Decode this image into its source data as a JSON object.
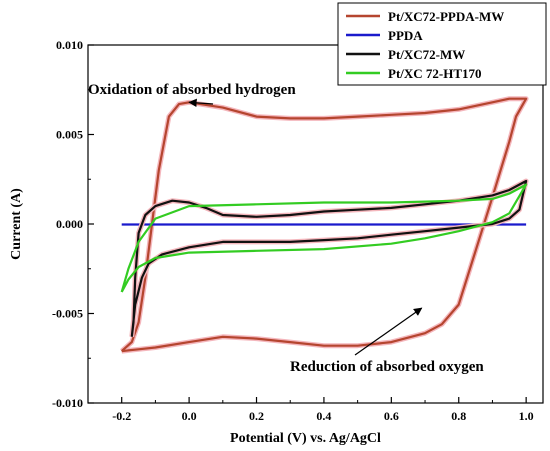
{
  "chart_data": {
    "type": "line",
    "xlabel": "Potential (V) vs. Ag/AgCl",
    "ylabel": "Current (A)",
    "xlim": [
      -0.3,
      1.05
    ],
    "ylim": [
      -0.01,
      0.01
    ],
    "x_ticks": [
      -0.2,
      0.0,
      0.2,
      0.4,
      0.6,
      0.8,
      1.0
    ],
    "x_tick_labels": [
      "-0.2",
      "0.0",
      "0.2",
      "0.4",
      "0.6",
      "0.8",
      "1.0"
    ],
    "y_ticks": [
      -0.01,
      -0.005,
      0.0,
      0.005,
      0.01
    ],
    "y_tick_labels": [
      "-0.010",
      "-0.005",
      "0.000",
      "0.005",
      "0.010"
    ],
    "grid": false,
    "legend_position": "top-right",
    "series": [
      {
        "name": "Pt/XC72-PPDA-MW",
        "color": "#b5452f",
        "glow": "#f4b6bc",
        "points": [
          [
            -0.2,
            -0.0071
          ],
          [
            -0.15,
            -0.007
          ],
          [
            -0.1,
            -0.0069
          ],
          [
            0.0,
            -0.0066
          ],
          [
            0.1,
            -0.0063
          ],
          [
            0.2,
            -0.0064
          ],
          [
            0.3,
            -0.0066
          ],
          [
            0.4,
            -0.0068
          ],
          [
            0.5,
            -0.0068
          ],
          [
            0.6,
            -0.0066
          ],
          [
            0.7,
            -0.0061
          ],
          [
            0.75,
            -0.0056
          ],
          [
            0.8,
            -0.0045
          ],
          [
            0.85,
            -0.0015
          ],
          [
            0.9,
            0.0015
          ],
          [
            0.95,
            0.0046
          ],
          [
            0.97,
            0.006
          ],
          [
            1.0,
            0.007
          ],
          [
            0.95,
            0.007
          ],
          [
            0.9,
            0.0068
          ],
          [
            0.8,
            0.0064
          ],
          [
            0.7,
            0.0062
          ],
          [
            0.6,
            0.0061
          ],
          [
            0.5,
            0.006
          ],
          [
            0.4,
            0.0059
          ],
          [
            0.3,
            0.0059
          ],
          [
            0.2,
            0.006
          ],
          [
            0.1,
            0.0065
          ],
          [
            0.0,
            0.0068
          ],
          [
            -0.03,
            0.0067
          ],
          [
            -0.06,
            0.006
          ],
          [
            -0.09,
            0.003
          ],
          [
            -0.11,
            0.0
          ],
          [
            -0.13,
            -0.003
          ],
          [
            -0.15,
            -0.0055
          ],
          [
            -0.17,
            -0.0066
          ],
          [
            -0.2,
            -0.0071
          ]
        ]
      },
      {
        "name": "PPDA",
        "color": "#1a1acc",
        "glow": "none",
        "points": [
          [
            -0.2,
            -3e-05
          ],
          [
            0.0,
            -3e-05
          ],
          [
            0.2,
            -3e-05
          ],
          [
            0.4,
            -3e-05
          ],
          [
            0.6,
            -3e-05
          ],
          [
            0.8,
            -3e-05
          ],
          [
            1.0,
            -3e-05
          ]
        ]
      },
      {
        "name": "Pt/XC72-MW",
        "color": "#111111",
        "glow": "#f4b6bc",
        "points": [
          [
            -0.17,
            -0.0063
          ],
          [
            -0.16,
            -0.0045
          ],
          [
            -0.14,
            -0.003
          ],
          [
            -0.12,
            -0.0022
          ],
          [
            -0.08,
            -0.0017
          ],
          [
            0.0,
            -0.0013
          ],
          [
            0.1,
            -0.001
          ],
          [
            0.2,
            -0.001
          ],
          [
            0.3,
            -0.001
          ],
          [
            0.4,
            -0.0009
          ],
          [
            0.5,
            -0.0008
          ],
          [
            0.6,
            -0.0006
          ],
          [
            0.7,
            -0.0004
          ],
          [
            0.8,
            -0.0002
          ],
          [
            0.9,
            0.0
          ],
          [
            0.95,
            0.0003
          ],
          [
            0.98,
            0.0008
          ],
          [
            1.0,
            0.0024
          ],
          [
            0.95,
            0.0019
          ],
          [
            0.9,
            0.0016
          ],
          [
            0.8,
            0.0013
          ],
          [
            0.7,
            0.0011
          ],
          [
            0.6,
            0.0009
          ],
          [
            0.5,
            0.0008
          ],
          [
            0.4,
            0.0007
          ],
          [
            0.3,
            0.0005
          ],
          [
            0.2,
            0.0004
          ],
          [
            0.1,
            0.0005
          ],
          [
            0.05,
            0.0009
          ],
          [
            0.0,
            0.0012
          ],
          [
            -0.05,
            0.0013
          ],
          [
            -0.1,
            0.001
          ],
          [
            -0.13,
            0.0005
          ],
          [
            -0.15,
            -0.0005
          ],
          [
            -0.16,
            -0.003
          ],
          [
            -0.165,
            -0.0055
          ],
          [
            -0.17,
            -0.0063
          ]
        ]
      },
      {
        "name": "Pt/XC 72-HT170",
        "color": "#33cc22",
        "glow": "none",
        "points": [
          [
            -0.2,
            -0.0038
          ],
          [
            -0.18,
            -0.0031
          ],
          [
            -0.15,
            -0.0024
          ],
          [
            -0.1,
            -0.0019
          ],
          [
            0.0,
            -0.0016
          ],
          [
            0.2,
            -0.0015
          ],
          [
            0.4,
            -0.0014
          ],
          [
            0.6,
            -0.0011
          ],
          [
            0.7,
            -0.0008
          ],
          [
            0.8,
            -0.0004
          ],
          [
            0.9,
            0.0001
          ],
          [
            0.95,
            0.0006
          ],
          [
            1.0,
            0.0022
          ],
          [
            0.95,
            0.0017
          ],
          [
            0.9,
            0.0014
          ],
          [
            0.8,
            0.0013
          ],
          [
            0.6,
            0.0012
          ],
          [
            0.4,
            0.0012
          ],
          [
            0.2,
            0.0011
          ],
          [
            0.0,
            0.001
          ],
          [
            -0.1,
            0.0003
          ],
          [
            -0.15,
            -0.001
          ],
          [
            -0.18,
            -0.0025
          ],
          [
            -0.2,
            -0.0038
          ]
        ]
      }
    ],
    "annotations": [
      {
        "text": "Oxidation of absorbed hydrogen",
        "arrow_to": [
          0.0,
          0.0068
        ]
      },
      {
        "text": "Reduction of absorbed oxygen",
        "arrow_to": [
          0.69,
          -0.0047
        ]
      }
    ]
  }
}
